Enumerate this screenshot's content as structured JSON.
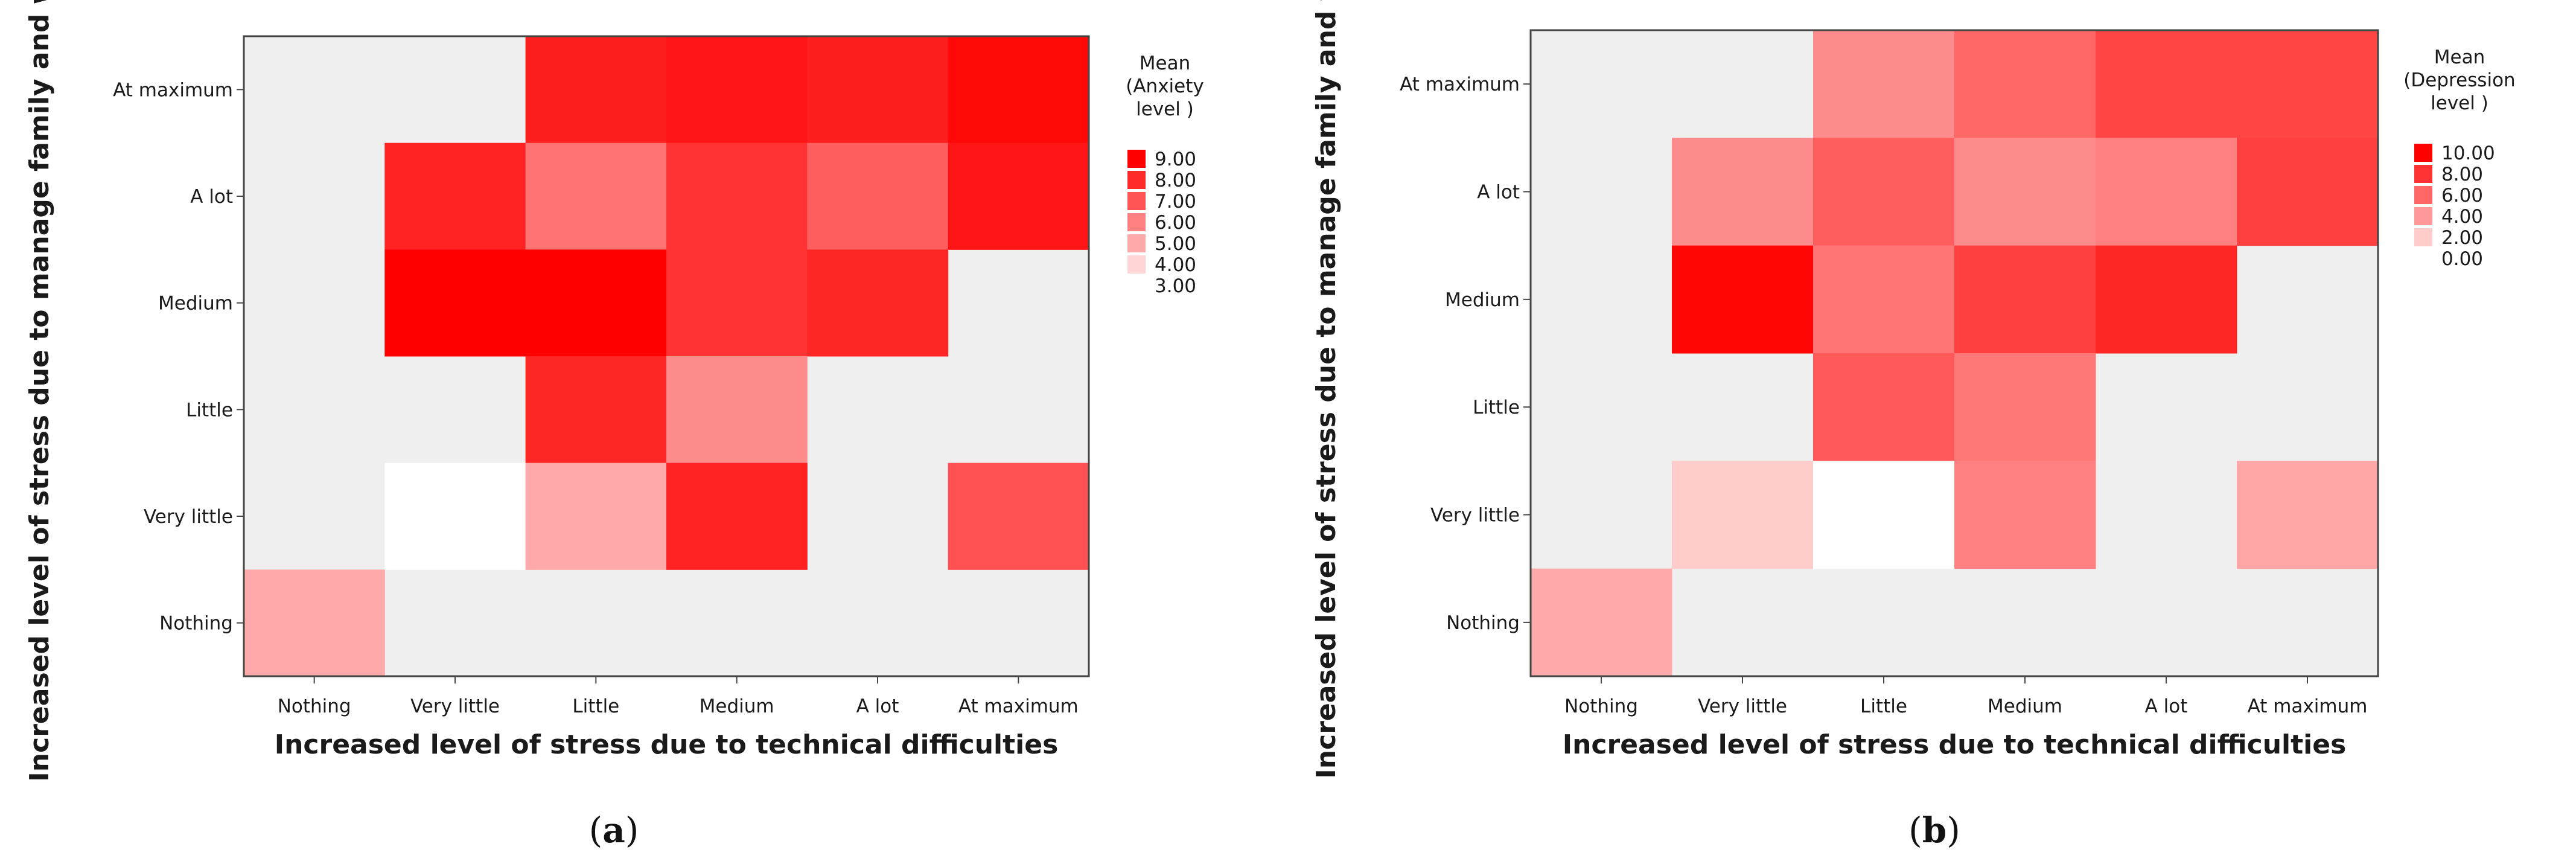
{
  "chart_data": [
    {
      "type": "heatmap",
      "panel_label": "(a)",
      "panel_letter": "a",
      "xlabel": "Increased level of stress due to technical difficulties",
      "ylabel": "Increased level  of stress due to manage family and work",
      "x_categories": [
        "Nothing",
        "Very little",
        "Little",
        "Medium",
        "A lot",
        "At maximum"
      ],
      "y_categories": [
        "At maximum",
        "A lot",
        "Medium",
        "Little",
        "Very little",
        "Nothing"
      ],
      "values": [
        [
          null,
          null,
          8.3,
          8.5,
          8.3,
          8.8
        ],
        [
          null,
          8.2,
          6.3,
          7.8,
          6.8,
          8.5
        ],
        [
          null,
          9.0,
          9.0,
          7.8,
          8.1,
          null
        ],
        [
          null,
          null,
          8.1,
          5.7,
          null,
          null
        ],
        [
          null,
          3.0,
          5.0,
          8.2,
          null,
          7.1
        ],
        [
          5.0,
          null,
          null,
          null,
          null,
          null
        ]
      ],
      "empty_color": "#efefef",
      "color_range": [
        3.0,
        9.0
      ],
      "legend": {
        "title": [
          "Mean",
          "(Anxiety",
          "level  )"
        ],
        "entries": [
          {
            "label": "9.00",
            "value": 9
          },
          {
            "label": "8.00",
            "value": 8
          },
          {
            "label": "7.00",
            "value": 7
          },
          {
            "label": "6.00",
            "value": 6
          },
          {
            "label": "5.00",
            "value": 5
          },
          {
            "label": "4.00",
            "value": 4
          },
          {
            "label": "3.00",
            "value": 3
          }
        ]
      }
    },
    {
      "type": "heatmap",
      "panel_label": "(b)",
      "panel_letter": "b",
      "xlabel": "Increased level of stress due to technical difficulties",
      "ylabel": "Increased level  of stress due to manage family and work",
      "x_categories": [
        "Nothing",
        "Very little",
        "Little",
        "Medium",
        "A lot",
        "At maximum"
      ],
      "y_categories": [
        "At maximum",
        "A lot",
        "Medium",
        "Little",
        "Very little",
        "Nothing"
      ],
      "values": [
        [
          null,
          null,
          4.5,
          6.0,
          7.3,
          7.3
        ],
        [
          null,
          4.5,
          6.3,
          4.5,
          5.0,
          7.5
        ],
        [
          null,
          9.8,
          5.4,
          7.5,
          8.5,
          null
        ],
        [
          null,
          null,
          6.5,
          5.3,
          null,
          null
        ],
        [
          null,
          2.0,
          0.0,
          5.0,
          null,
          3.5
        ],
        [
          3.3,
          null,
          null,
          null,
          null,
          null
        ]
      ],
      "empty_color": "#efefef",
      "color_range": [
        0.0,
        10.0
      ],
      "legend": {
        "title": [
          "Mean",
          "(Depression",
          "level )"
        ],
        "entries": [
          {
            "label": "10.00",
            "value": 10
          },
          {
            "label": "8.00",
            "value": 8
          },
          {
            "label": "6.00",
            "value": 6
          },
          {
            "label": "4.00",
            "value": 4
          },
          {
            "label": "2.00",
            "value": 2
          },
          {
            "label": "0.00",
            "value": 0
          }
        ]
      }
    }
  ]
}
